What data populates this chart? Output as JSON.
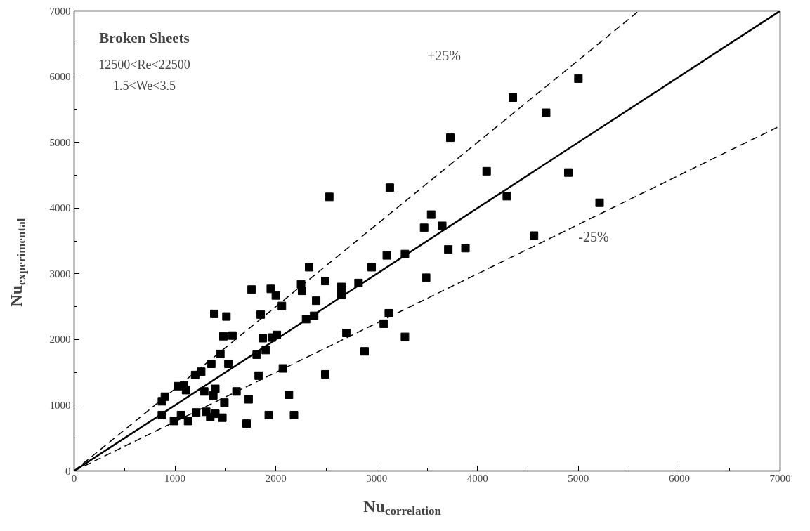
{
  "chart_data": {
    "type": "scatter",
    "xlabel": "Nu$_{correlation}$",
    "ylabel": "Nu$_{experimental}$",
    "xlim": [
      0,
      7000
    ],
    "ylim": [
      0,
      7000
    ],
    "xticks": [
      0,
      1000,
      2000,
      3000,
      4000,
      5000,
      6000,
      7000
    ],
    "yticks": [
      0,
      1000,
      2000,
      3000,
      4000,
      5000,
      6000,
      7000
    ],
    "grid": false,
    "series": [
      {
        "marker": "square",
        "color": "#000000",
        "x": [
          870,
          900,
          870,
          990,
          1030,
          1060,
          1090,
          1110,
          1130,
          1200,
          1210,
          1260,
          1290,
          1310,
          1350,
          1360,
          1380,
          1390,
          1400,
          1400,
          1450,
          1470,
          1480,
          1490,
          1510,
          1530,
          1570,
          1610,
          1710,
          1730,
          1760,
          1810,
          1830,
          1850,
          1870,
          1900,
          1930,
          1950,
          1960,
          2000,
          2010,
          2060,
          2070,
          2130,
          2180,
          2250,
          2260,
          2300,
          2330,
          2380,
          2400,
          2490,
          2490,
          2530,
          2650,
          2650,
          2700,
          2820,
          2880,
          2950,
          3070,
          3100,
          3120,
          3130,
          3280,
          3280,
          3470,
          3490,
          3540,
          3650,
          3710,
          3730,
          3880,
          4090,
          4290,
          4350,
          4560,
          4680,
          4900,
          5000,
          5210
        ],
        "values": [
          1060,
          1130,
          850,
          760,
          1290,
          850,
          1300,
          1230,
          760,
          1460,
          890,
          1510,
          1210,
          900,
          820,
          1630,
          1150,
          2390,
          1250,
          870,
          1780,
          810,
          2050,
          1040,
          2350,
          1630,
          2060,
          1210,
          720,
          1090,
          2760,
          1770,
          1450,
          2380,
          2020,
          1840,
          850,
          2770,
          2030,
          2670,
          2070,
          2510,
          1560,
          1160,
          850,
          2840,
          2740,
          2310,
          3100,
          2360,
          2590,
          2890,
          1470,
          4170,
          2800,
          2680,
          2100,
          2860,
          1820,
          3100,
          2240,
          3280,
          2400,
          4310,
          3300,
          2040,
          3700,
          2940,
          3900,
          3730,
          3370,
          5070,
          3390,
          4560,
          4180,
          5680,
          3580,
          5450,
          4540,
          5970,
          4080
        ]
      },
      {
        "type": "line",
        "color": "#000000",
        "line_style": "solid",
        "x": [
          0,
          7000
        ],
        "values": [
          0,
          7000
        ]
      },
      {
        "type": "line",
        "color": "#000000",
        "line_style": "dashed",
        "x": [
          0,
          5600
        ],
        "values": [
          0,
          7000
        ]
      },
      {
        "type": "line",
        "color": "#000000",
        "line_style": "dashed",
        "x": [
          0,
          7000
        ],
        "values": [
          0,
          5250
        ]
      }
    ],
    "annotations": [
      "Broken Sheets",
      "12500<Re<22500",
      "1.5<We<3.5",
      "+25%",
      "-25%"
    ]
  }
}
